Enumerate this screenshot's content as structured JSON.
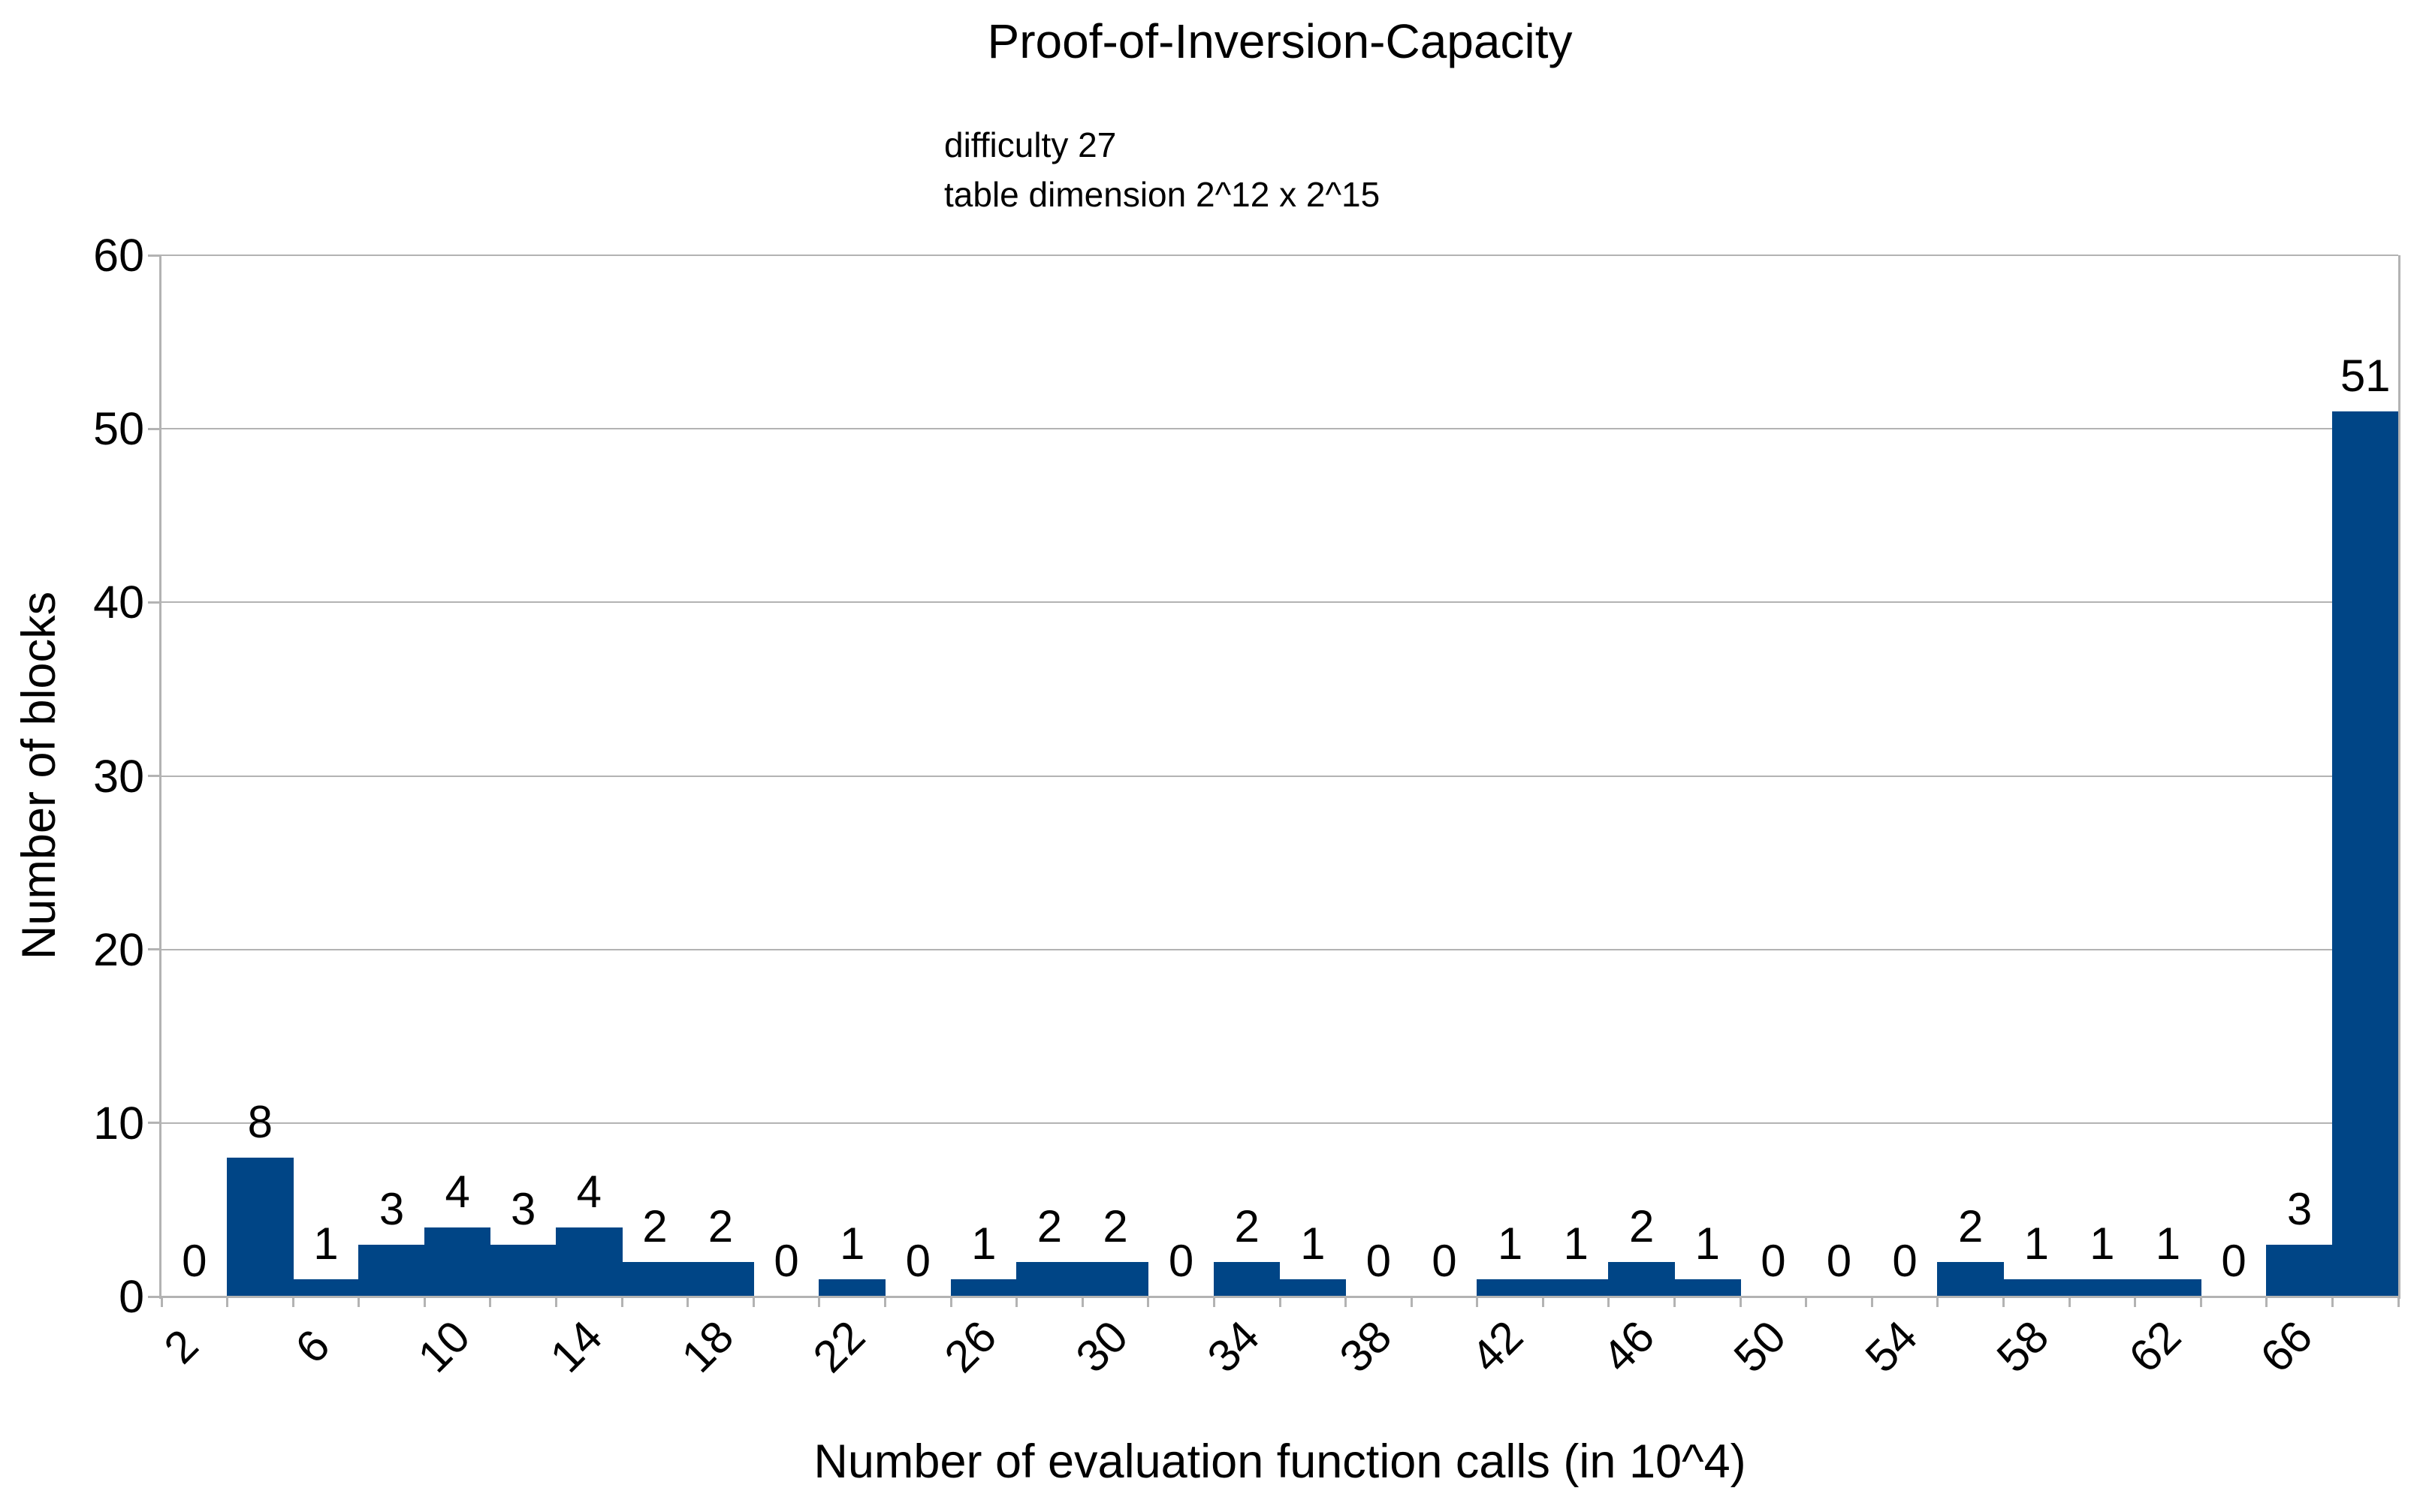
{
  "page": {
    "background_color": "#ffffff",
    "text_color": "#000000"
  },
  "chart_data": {
    "type": "bar",
    "subtype": "histogram",
    "title": "Proof-of-Inversion-Capacity",
    "subtitle_lines": [
      "difficulty 27",
      "table dimension 2^12 x 2^15"
    ],
    "xlabel": "Number of evaluation function calls (in 10^4)",
    "ylabel": "Number of blocks",
    "bar_color": "#004586",
    "axis_color": "#b3b3b3",
    "grid": "horizontal",
    "legend": "none",
    "ylim": [
      0,
      60
    ],
    "y_ticks": [
      0,
      10,
      20,
      30,
      40,
      50,
      60
    ],
    "bins": {
      "start": 2,
      "width": 2,
      "count": 34
    },
    "x_tick_labels": [
      "2",
      "6",
      "10",
      "14",
      "18",
      "22",
      "26",
      "30",
      "34",
      "38",
      "42",
      "46",
      "50",
      "54",
      "58",
      "62",
      "66"
    ],
    "x_tick_label_boundary_step": 2,
    "values": [
      0,
      8,
      1,
      3,
      4,
      3,
      4,
      2,
      2,
      0,
      1,
      0,
      1,
      2,
      2,
      0,
      2,
      1,
      0,
      0,
      1,
      1,
      2,
      1,
      0,
      0,
      0,
      2,
      1,
      1,
      1,
      0,
      3,
      51
    ],
    "data_labels_shown": true
  }
}
